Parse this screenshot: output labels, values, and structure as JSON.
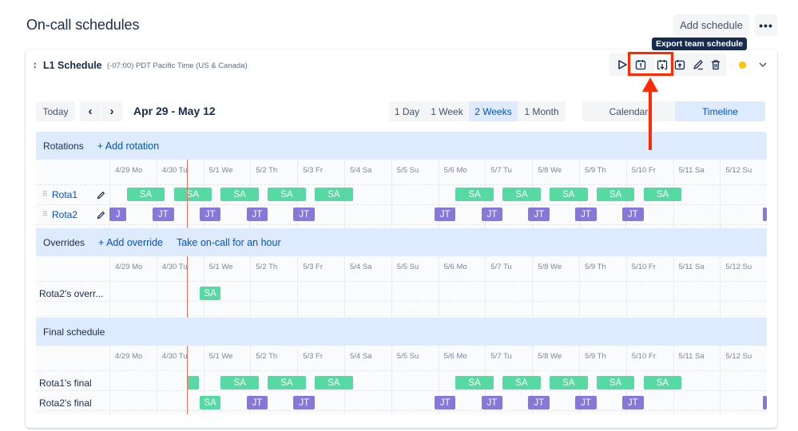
{
  "page": {
    "title": "On-call schedules",
    "add_schedule_label": "Add schedule",
    "more_label": "•••"
  },
  "tooltip": {
    "text": "Export team schedule"
  },
  "schedule": {
    "name": "L1 Schedule",
    "timezone": "(-07:00) PDT Pacific Time (US & Canada)",
    "drag_glyph": "↕",
    "toolbar_icons": [
      "play-icon",
      "calendar-day-icon",
      "calendar-export-icon",
      "calendar-import-icon",
      "edit-icon",
      "trash-icon"
    ],
    "status_color": "#ffc400"
  },
  "nav": {
    "today_label": "Today",
    "prev_glyph": "‹",
    "next_glyph": "›",
    "date_range": "Apr 29 - May 12"
  },
  "range_options": [
    {
      "label": "1 Day",
      "active": false
    },
    {
      "label": "1 Week",
      "active": false
    },
    {
      "label": "2 Weeks",
      "active": true
    },
    {
      "label": "1 Month",
      "active": false
    }
  ],
  "view_options": [
    {
      "label": "Calendar",
      "active": false
    },
    {
      "label": "Timeline",
      "active": true
    }
  ],
  "days": [
    "4/29 Mo",
    "4/30 Tu",
    "5/1 We",
    "5/2 Th",
    "5/3 Fr",
    "5/4 Sa",
    "5/5 Su",
    "5/6 Mo",
    "5/7 Tu",
    "5/8 We",
    "5/9 Th",
    "5/10 Fr",
    "5/11 Sa",
    "5/12 Su"
  ],
  "sections": {
    "rotations": {
      "title": "Rotations",
      "links": [
        "+ Add rotation"
      ],
      "rows": [
        {
          "label": "Rota1",
          "chips": [
            [
              "SA",
              0.37,
              1.18,
              "sa"
            ],
            [
              "SA",
              1.37,
              2.18,
              "sa"
            ],
            [
              "SA",
              2.37,
              3.18,
              "sa"
            ],
            [
              "SA",
              3.37,
              4.18,
              "sa"
            ],
            [
              "SA",
              4.37,
              5.18,
              "sa"
            ],
            [
              "SA",
              7.37,
              8.18,
              "sa"
            ],
            [
              "SA",
              8.37,
              9.18,
              "sa"
            ],
            [
              "SA",
              9.37,
              10.18,
              "sa"
            ],
            [
              "SA",
              10.37,
              11.18,
              "sa"
            ],
            [
              "SA",
              11.37,
              12.18,
              "sa"
            ]
          ]
        },
        {
          "label": "Rota2",
          "chips": [
            [
              "J",
              0.0,
              0.36,
              "jt"
            ],
            [
              "JT",
              0.92,
              1.37,
              "jt"
            ],
            [
              "JT",
              1.92,
              2.37,
              "jt"
            ],
            [
              "JT",
              2.92,
              3.37,
              "jt"
            ],
            [
              "JT",
              3.92,
              4.37,
              "jt"
            ],
            [
              "JT",
              6.92,
              7.37,
              "jt"
            ],
            [
              "JT",
              7.92,
              8.37,
              "jt"
            ],
            [
              "JT",
              8.92,
              9.37,
              "jt"
            ],
            [
              "JT",
              9.92,
              10.37,
              "jt"
            ],
            [
              "JT",
              10.92,
              11.37,
              "jt"
            ],
            [
              "",
              13.92,
              14.0,
              "jt"
            ]
          ]
        }
      ]
    },
    "overrides": {
      "title": "Overrides",
      "links": [
        "+ Add override",
        "Take on-call for an hour"
      ],
      "rows": [
        {
          "label": "Rota2's overr...",
          "chips": [
            [
              "SA",
              1.92,
              2.37,
              "sa"
            ]
          ]
        }
      ]
    },
    "final": {
      "title": "Final schedule",
      "links": [],
      "rows": [
        {
          "label": "Rota1's final",
          "chips": [
            [
              "",
              1.65,
              1.9,
              "sa"
            ],
            [
              "SA",
              2.37,
              3.18,
              "sa"
            ],
            [
              "SA",
              3.37,
              4.18,
              "sa"
            ],
            [
              "SA",
              4.37,
              5.18,
              "sa"
            ],
            [
              "SA",
              7.37,
              8.18,
              "sa"
            ],
            [
              "SA",
              8.37,
              9.18,
              "sa"
            ],
            [
              "SA",
              9.37,
              10.18,
              "sa"
            ],
            [
              "SA",
              10.37,
              11.18,
              "sa"
            ],
            [
              "SA",
              11.37,
              12.18,
              "sa"
            ]
          ]
        },
        {
          "label": "Rota2's final",
          "chips": [
            [
              "SA",
              1.92,
              2.37,
              "sa"
            ],
            [
              "JT",
              2.92,
              3.37,
              "jt"
            ],
            [
              "JT",
              3.92,
              4.37,
              "jt"
            ],
            [
              "JT",
              6.92,
              7.37,
              "jt"
            ],
            [
              "JT",
              7.92,
              8.37,
              "jt"
            ],
            [
              "JT",
              8.92,
              9.37,
              "jt"
            ],
            [
              "JT",
              9.92,
              10.37,
              "jt"
            ],
            [
              "JT",
              10.92,
              11.37,
              "jt"
            ],
            [
              "",
              13.92,
              14.0,
              "jt"
            ]
          ]
        }
      ]
    }
  },
  "now_position": 1.65,
  "colors": {
    "accent": "#0052cc",
    "section_bg": "#deebff",
    "chip_sa": "#57d9a3",
    "chip_jt": "#8777d9",
    "now_line": "#e8735a",
    "annotation": "#ff2a00"
  }
}
